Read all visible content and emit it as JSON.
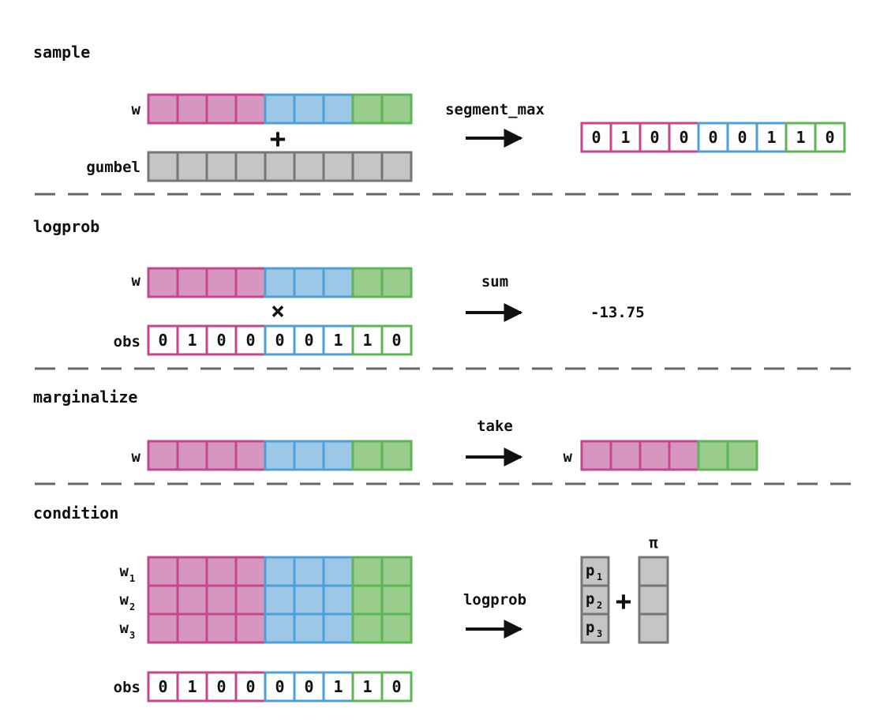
{
  "colors": {
    "pink": "#d696bd",
    "pink_border": "#c5458e",
    "blue": "#9dc7e6",
    "blue_border": "#4f9fd8",
    "green": "#99cc8d",
    "green_border": "#5cb653",
    "gray": "#c4c5c6",
    "gray_border": "#767676",
    "divider": "#666666"
  },
  "segments": [
    "pink",
    "pink",
    "pink",
    "pink",
    "blue",
    "blue",
    "blue",
    "green",
    "green"
  ],
  "taken_segments": [
    "pink",
    "pink",
    "pink",
    "pink",
    "green",
    "green"
  ],
  "observation": [
    "0",
    "1",
    "0",
    "0",
    "0",
    "0",
    "1",
    "1",
    "0"
  ],
  "sample": {
    "title": "sample",
    "w_label": "w",
    "noise_label": "gumbel",
    "op_symbol": "+",
    "arrow_label": "segment_max"
  },
  "logprob": {
    "title": "logprob",
    "w_label": "w",
    "obs_label": "obs",
    "op_symbol": "×",
    "arrow_label": "sum",
    "result": "-13.75"
  },
  "marginalize": {
    "title": "marginalize",
    "w_label": "w",
    "arrow_label": "take",
    "result_label": "w"
  },
  "condition": {
    "title": "condition",
    "row_labels": [
      "w",
      "w",
      "w"
    ],
    "row_subscripts": [
      "1",
      "2",
      "3"
    ],
    "obs_label": "obs",
    "arrow_label": "logprob",
    "p_labels": [
      "p",
      "p",
      "p"
    ],
    "p_subscripts": [
      "1",
      "2",
      "3"
    ],
    "plus_symbol": "+",
    "pi_label": "π"
  }
}
